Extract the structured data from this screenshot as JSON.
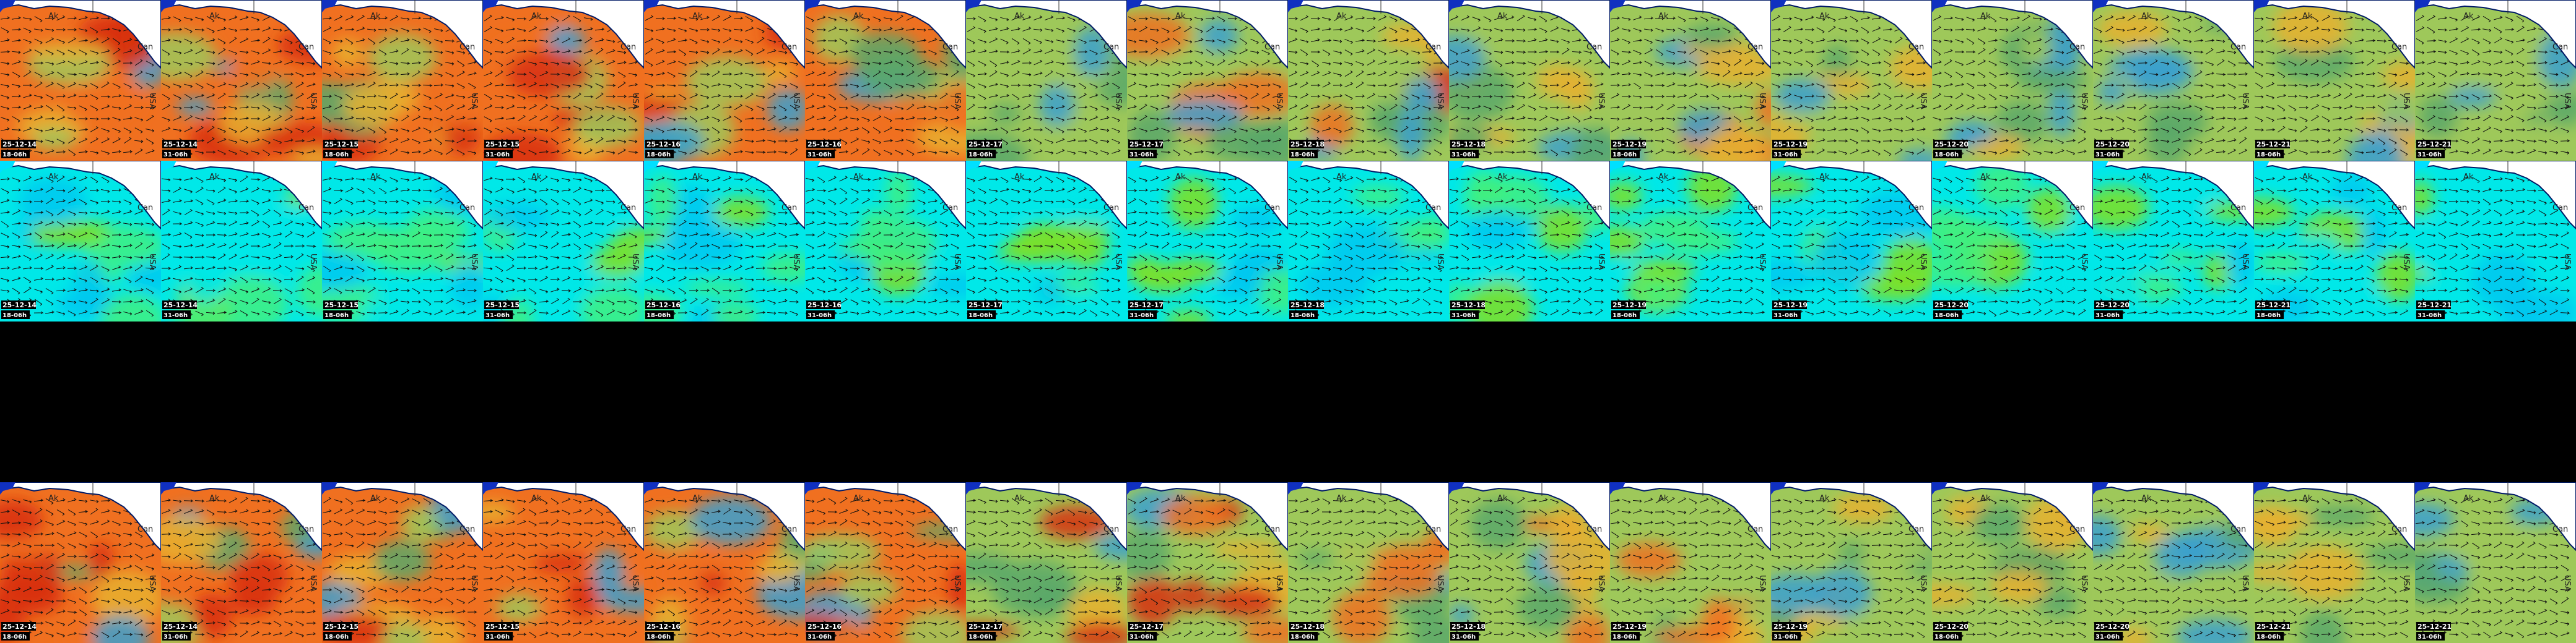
{
  "map_labels": {
    "ak": "Ak",
    "can": "Can",
    "usa": "USA"
  },
  "panels": [
    {
      "tiles": [
        {
          "date": "25-12-14",
          "time": "18-06h"
        },
        {
          "date": "25-12-14",
          "time": "31-06h"
        },
        {
          "date": "25-12-15",
          "time": "18-06h"
        },
        {
          "date": "25-12-15",
          "time": "31-06h"
        },
        {
          "date": "25-12-16",
          "time": "18-06h"
        },
        {
          "date": "25-12-16",
          "time": "31-06h"
        },
        {
          "date": "25-12-17",
          "time": "18-06h"
        },
        {
          "date": "25-12-17",
          "time": "31-06h"
        },
        {
          "date": "25-12-18",
          "time": "18-06h"
        },
        {
          "date": "25-12-18",
          "time": "31-06h"
        },
        {
          "date": "25-12-19",
          "time": "18-06h"
        },
        {
          "date": "25-12-19",
          "time": "31-06h"
        },
        {
          "date": "25-12-20",
          "time": "18-06h"
        },
        {
          "date": "25-12-20",
          "time": "31-06h"
        },
        {
          "date": "25-12-21",
          "time": "18-06h"
        },
        {
          "date": "25-12-21",
          "time": "31-06h"
        }
      ]
    },
    {
      "tiles": [
        {
          "date": "25-12-14",
          "time": "18-06h"
        },
        {
          "date": "25-12-14",
          "time": "31-06h"
        },
        {
          "date": "25-12-15",
          "time": "18-06h"
        },
        {
          "date": "25-12-15",
          "time": "31-06h"
        },
        {
          "date": "25-12-16",
          "time": "18-06h"
        },
        {
          "date": "25-12-16",
          "time": "31-06h"
        },
        {
          "date": "25-12-17",
          "time": "18-06h"
        },
        {
          "date": "25-12-17",
          "time": "31-06h"
        },
        {
          "date": "25-12-18",
          "time": "18-06h"
        },
        {
          "date": "25-12-18",
          "time": "31-06h"
        },
        {
          "date": "25-12-19",
          "time": "18-06h"
        },
        {
          "date": "25-12-19",
          "time": "31-06h"
        },
        {
          "date": "25-12-20",
          "time": "18-06h"
        },
        {
          "date": "25-12-20",
          "time": "31-06h"
        },
        {
          "date": "25-12-21",
          "time": "18-06h"
        },
        {
          "date": "25-12-21",
          "time": "31-06h"
        }
      ]
    },
    {
      "tiles": [
        {
          "date": "25-12-14",
          "time": "18-06h"
        },
        {
          "date": "25-12-14",
          "time": "31-06h"
        },
        {
          "date": "25-12-15",
          "time": "18-06h"
        },
        {
          "date": "25-12-15",
          "time": "31-06h"
        },
        {
          "date": "25-12-16",
          "time": "18-06h"
        },
        {
          "date": "25-12-16",
          "time": "31-06h"
        },
        {
          "date": "25-12-17",
          "time": "18-06h"
        },
        {
          "date": "25-12-17",
          "time": "31-06h"
        },
        {
          "date": "25-12-18",
          "time": "18-06h"
        },
        {
          "date": "25-12-18",
          "time": "31-06h"
        },
        {
          "date": "25-12-19",
          "time": "18-06h"
        },
        {
          "date": "25-12-19",
          "time": "31-06h"
        },
        {
          "date": "25-12-20",
          "time": "18-06h"
        },
        {
          "date": "25-12-20",
          "time": "31-06h"
        },
        {
          "date": "25-12-21",
          "time": "18-06h"
        },
        {
          "date": "25-12-21",
          "time": "31-06h"
        }
      ]
    }
  ]
}
